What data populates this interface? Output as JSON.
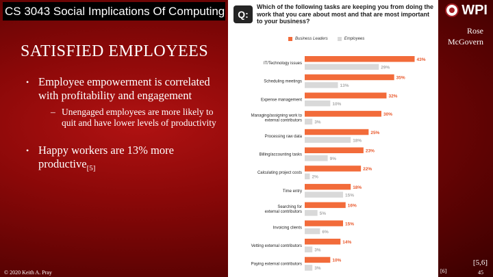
{
  "slide": {
    "course_title": "CS 3043 Social Implications Of Computing",
    "heading": "SATISFIED EMPLOYEES",
    "bullets": [
      {
        "text": "Employee empowerment is correlated with profitability and engagement",
        "sub": "Unengaged employees are more likely to quit and have lower levels of productivity"
      },
      {
        "text": "Happy workers are 13% more productive",
        "cite": "[5]"
      }
    ],
    "logo_text": "WPI",
    "author_first": "Rose",
    "author_last": "McGovern",
    "citation_right": "[5,6]",
    "image_citation": "[6]",
    "copyright": "© 2020 Keith A. Pray",
    "page_number": "45"
  },
  "chart_data": {
    "type": "bar",
    "orientation": "horizontal",
    "title": "Which of the following tasks are keeping you from doing the work that you care about most and that are most important to your business?",
    "badge": "Q:",
    "categories": [
      "IT/Technology issues",
      "Scheduling meetings",
      "Expense management",
      "Managing/assigning work to external contributors",
      "Processing raw data",
      "Billing/accounting tasks",
      "Calculating project costs",
      "Time entry",
      "Searching for external contributors",
      "Invoicing clients",
      "Vetting external contributors",
      "Paying external contributors"
    ],
    "series": [
      {
        "name": "Business Leaders",
        "color": "#f26b3a",
        "values": [
          43,
          35,
          32,
          30,
          25,
          23,
          22,
          18,
          16,
          15,
          14,
          10
        ]
      },
      {
        "name": "Employees",
        "color": "#d9d9d9",
        "values": [
          29,
          13,
          10,
          3,
          18,
          9,
          2,
          15,
          5,
          6,
          3,
          3
        ]
      }
    ],
    "value_suffix": "%",
    "xlim": [
      0,
      45
    ]
  }
}
